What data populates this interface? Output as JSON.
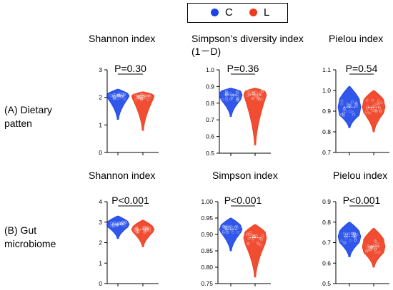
{
  "legend": [
    {
      "label": "C",
      "color": "#1a44e8"
    },
    {
      "label": "L",
      "color": "#ee3a1c"
    }
  ],
  "row_labels": [
    "(A) Dietary\npatten",
    "(B) Gut\nmicrobiome"
  ],
  "panel_titles": [
    "Shannon index",
    "Simpson’s diversity index\n(1－D)",
    "Pielou index",
    "Shannon index",
    "Simpson index",
    "Pielou index"
  ],
  "chart_data": [
    {
      "type": "violin",
      "title": "Shannon index",
      "row": "(A) Dietary patten",
      "categories": [
        "C",
        "L"
      ],
      "ylim": [
        0,
        3
      ],
      "yticks": [
        "0",
        "1",
        "2",
        "3"
      ],
      "annotation": "P=0.30",
      "series": [
        {
          "name": "C",
          "min": 1.2,
          "q1": 1.95,
          "median": 2.05,
          "q3": 2.12,
          "max": 2.3
        },
        {
          "name": "L",
          "min": 0.8,
          "q1": 1.9,
          "median": 2.05,
          "q3": 2.1,
          "max": 2.2
        }
      ]
    },
    {
      "type": "violin",
      "title": "Simpson’s diversity index (1－D)",
      "row": "(A) Dietary patten",
      "categories": [
        "C",
        "L"
      ],
      "ylim": [
        0.5,
        1.0
      ],
      "yticks": [
        "0.5",
        "0.6",
        "0.7",
        "0.8",
        "0.9",
        "1.0"
      ],
      "annotation": "P=0.36",
      "series": [
        {
          "name": "C",
          "min": 0.72,
          "q1": 0.82,
          "median": 0.85,
          "q3": 0.87,
          "max": 0.89
        },
        {
          "name": "L",
          "min": 0.55,
          "q1": 0.82,
          "median": 0.85,
          "q3": 0.87,
          "max": 0.89
        }
      ]
    },
    {
      "type": "violin",
      "title": "Pielou index",
      "row": "(A) Dietary patten",
      "categories": [
        "C",
        "L"
      ],
      "ylim": [
        0.7,
        1.1
      ],
      "yticks": [
        "0.7",
        "0.8",
        "0.9",
        "1.0",
        "1.1"
      ],
      "annotation": "P=0.54",
      "series": [
        {
          "name": "C",
          "min": 0.82,
          "q1": 0.88,
          "median": 0.92,
          "q3": 0.95,
          "max": 1.02
        },
        {
          "name": "L",
          "min": 0.8,
          "q1": 0.89,
          "median": 0.92,
          "q3": 0.95,
          "max": 1.0
        }
      ]
    },
    {
      "type": "violin",
      "title": "Shannon index",
      "row": "(B) Gut microbiome",
      "categories": [
        "C",
        "L"
      ],
      "ylim": [
        0,
        4
      ],
      "yticks": [
        "0",
        "1",
        "2",
        "3",
        "4"
      ],
      "annotation": "P<0.001",
      "series": [
        {
          "name": "C",
          "min": 2.2,
          "q1": 2.75,
          "median": 2.9,
          "q3": 3.0,
          "max": 3.3
        },
        {
          "name": "L",
          "min": 1.8,
          "q1": 2.5,
          "median": 2.65,
          "q3": 2.75,
          "max": 3.1
        }
      ]
    },
    {
      "type": "violin",
      "title": "Simpson index",
      "row": "(B) Gut microbiome",
      "categories": [
        "C",
        "L"
      ],
      "ylim": [
        0.75,
        1.0
      ],
      "yticks": [
        "0.75",
        "0.80",
        "0.85",
        "0.90",
        "0.95",
        "1.00"
      ],
      "annotation": "P<0.001",
      "series": [
        {
          "name": "C",
          "min": 0.85,
          "q1": 0.905,
          "median": 0.915,
          "q3": 0.925,
          "max": 0.95
        },
        {
          "name": "L",
          "min": 0.77,
          "q1": 0.87,
          "median": 0.89,
          "q3": 0.905,
          "max": 0.93
        }
      ]
    },
    {
      "type": "violin",
      "title": "Pielou index",
      "row": "(B) Gut microbiome",
      "categories": [
        "C",
        "L"
      ],
      "ylim": [
        0.5,
        0.9
      ],
      "yticks": [
        "0.5",
        "0.6",
        "0.7",
        "0.8",
        "0.9"
      ],
      "annotation": "P<0.001",
      "series": [
        {
          "name": "C",
          "min": 0.63,
          "q1": 0.7,
          "median": 0.73,
          "q3": 0.75,
          "max": 0.8
        },
        {
          "name": "L",
          "min": 0.58,
          "q1": 0.65,
          "median": 0.68,
          "q3": 0.71,
          "max": 0.77
        }
      ]
    }
  ]
}
